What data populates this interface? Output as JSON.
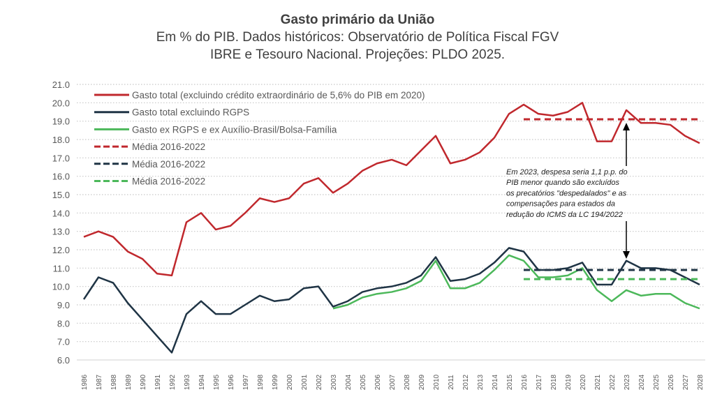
{
  "chart_data": {
    "type": "line",
    "title": "Gasto primário da União",
    "subtitle": [
      "Em % do PIB. Dados históricos: Observatório de Política Fiscal FGV",
      "IBRE e Tesouro Nacional. Projeções: PLDO 2025."
    ],
    "xlabel": "",
    "ylabel": "",
    "ylim": [
      6.0,
      21.0
    ],
    "yticks": [
      "6.0",
      "7.0",
      "8.0",
      "9.0",
      "10.0",
      "11.0",
      "12.0",
      "13.0",
      "14.0",
      "15.0",
      "16.0",
      "17.0",
      "18.0",
      "19.0",
      "20.0",
      "21.0"
    ],
    "grid": "horizontal dotted",
    "legend": "top-left",
    "x": [
      1986,
      1987,
      1988,
      1989,
      1990,
      1991,
      1992,
      1993,
      1994,
      1995,
      1996,
      1997,
      1998,
      1999,
      2000,
      2001,
      2002,
      2003,
      2004,
      2005,
      2006,
      2007,
      2008,
      2009,
      2010,
      2011,
      2012,
      2013,
      2014,
      2015,
      2016,
      2017,
      2018,
      2019,
      2020,
      2021,
      2022,
      2023,
      2024,
      2025,
      2026,
      2027,
      2028
    ],
    "series": [
      {
        "name": "Gasto total (excluindo crédito extraordinário de 5,6% do PIB em 2020)",
        "color": "#c0282d",
        "style": "solid",
        "values": [
          12.7,
          13.0,
          12.7,
          11.9,
          11.5,
          10.7,
          10.6,
          13.5,
          14.0,
          13.1,
          13.3,
          14.0,
          14.8,
          14.6,
          14.8,
          15.6,
          15.9,
          15.1,
          15.6,
          16.3,
          16.7,
          16.9,
          16.6,
          17.4,
          18.2,
          16.7,
          16.9,
          17.3,
          18.1,
          19.4,
          19.9,
          19.4,
          19.3,
          19.5,
          20.0,
          17.9,
          17.9,
          19.6,
          18.9,
          18.9,
          18.8,
          18.2,
          17.8
        ]
      },
      {
        "name": "Gasto total excluindo RGPS",
        "color": "#1f3445",
        "style": "solid",
        "values": [
          9.3,
          10.5,
          10.2,
          9.1,
          8.2,
          7.3,
          6.4,
          8.5,
          9.2,
          8.5,
          8.5,
          9.0,
          9.5,
          9.2,
          9.3,
          9.9,
          10.0,
          8.9,
          9.2,
          9.7,
          9.9,
          10.0,
          10.2,
          10.6,
          11.6,
          10.3,
          10.4,
          10.7,
          11.3,
          12.1,
          11.9,
          10.9,
          10.9,
          11.0,
          11.3,
          10.1,
          10.1,
          11.4,
          11.0,
          11.0,
          10.9,
          10.5,
          10.1
        ]
      },
      {
        "name": "Gasto ex RGPS e ex Auxílio-Brasil/Bolsa-Família",
        "color": "#4cb85a",
        "style": "solid",
        "values": [
          null,
          null,
          null,
          null,
          null,
          null,
          null,
          null,
          null,
          null,
          null,
          null,
          null,
          null,
          null,
          null,
          null,
          8.8,
          9.0,
          9.4,
          9.6,
          9.7,
          9.9,
          10.3,
          11.4,
          9.9,
          9.9,
          10.2,
          10.9,
          11.7,
          11.4,
          10.5,
          10.5,
          10.6,
          11.0,
          9.8,
          9.2,
          9.8,
          9.5,
          9.6,
          9.6,
          9.1,
          8.8
        ]
      },
      {
        "name": "Média 2016-2022",
        "color": "#c0282d",
        "style": "dashed",
        "from": 2016,
        "to": 2028,
        "value": 19.1
      },
      {
        "name": "Média 2016-2022",
        "color": "#1f3445",
        "style": "dashed",
        "from": 2016,
        "to": 2028,
        "value": 10.9
      },
      {
        "name": "Média 2016-2022",
        "color": "#4cb85a",
        "style": "dashed",
        "from": 2016,
        "to": 2028,
        "value": 10.4
      }
    ],
    "annotation": {
      "year": 2023,
      "lines": [
        "Em 2023, despesa seria 1,1 p.p. do",
        "PIB menor quando são excluídos",
        "os precatórios \"despedalados\" e as",
        "compensações para estados da",
        "redução do ICMS da LC 194/2022"
      ]
    }
  }
}
